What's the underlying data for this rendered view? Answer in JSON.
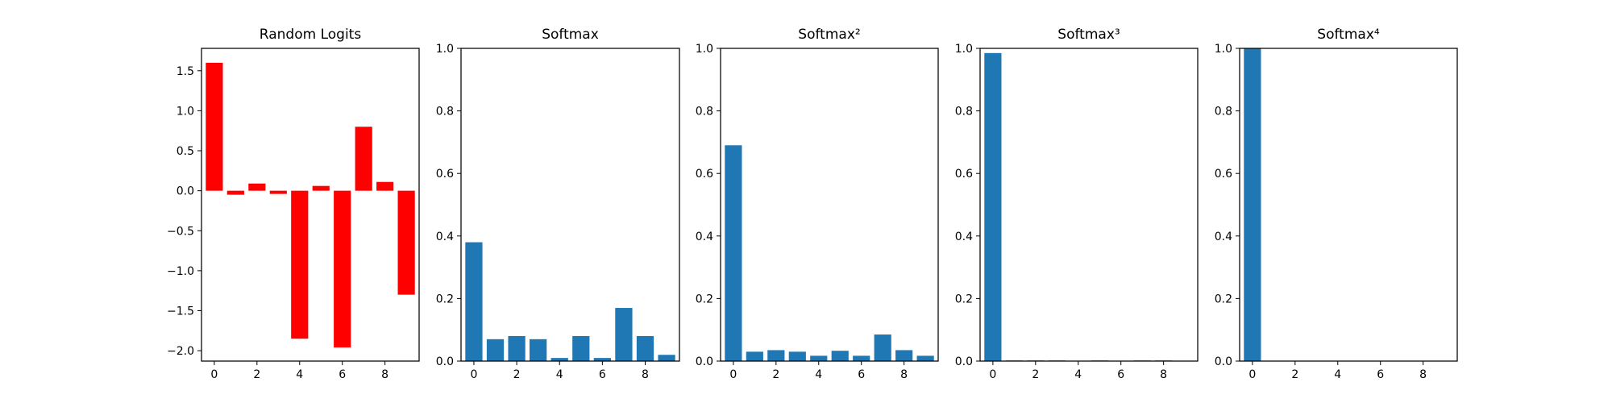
{
  "colors": {
    "logits": "#ff0000",
    "softmax": "#1f77b4"
  },
  "chart_data": [
    {
      "type": "bar",
      "title": "Random Logits",
      "color": "#ff0000",
      "x": [
        0,
        1,
        2,
        3,
        4,
        5,
        6,
        7,
        8,
        9
      ],
      "values": [
        1.6,
        -0.05,
        0.09,
        -0.04,
        -1.85,
        0.06,
        -1.96,
        0.8,
        0.11,
        -1.3
      ],
      "xlim": [
        -0.6,
        9.6
      ],
      "ylim": [
        -2.13,
        1.78
      ],
      "xticks": [
        0,
        2,
        4,
        6,
        8
      ],
      "xtick_labels": [
        "0",
        "2",
        "4",
        "6",
        "8"
      ],
      "yticks": [
        1.5,
        1.0,
        0.5,
        0.0,
        -0.5,
        -1.0,
        -1.5,
        -2.0
      ],
      "ytick_labels": [
        "1.5",
        "1.0",
        "0.5",
        "0.0",
        "−0.5",
        "−1.0",
        "−1.5",
        "−2.0"
      ],
      "grid": false
    },
    {
      "type": "bar",
      "title": "Softmax",
      "color": "#1f77b4",
      "x": [
        0,
        1,
        2,
        3,
        4,
        5,
        6,
        7,
        8,
        9
      ],
      "values": [
        0.38,
        0.07,
        0.08,
        0.07,
        0.01,
        0.08,
        0.01,
        0.17,
        0.08,
        0.02
      ],
      "xlim": [
        -0.6,
        9.6
      ],
      "ylim": [
        0,
        1
      ],
      "xticks": [
        0,
        2,
        4,
        6,
        8
      ],
      "xtick_labels": [
        "0",
        "2",
        "4",
        "6",
        "8"
      ],
      "yticks": [
        0.0,
        0.2,
        0.4,
        0.6,
        0.8,
        1.0
      ],
      "ytick_labels": [
        "0.0",
        "0.2",
        "0.4",
        "0.6",
        "0.8",
        "1.0"
      ],
      "grid": false
    },
    {
      "type": "bar",
      "title": "Softmax²",
      "color": "#1f77b4",
      "x": [
        0,
        1,
        2,
        3,
        4,
        5,
        6,
        7,
        8,
        9
      ],
      "values": [
        0.69,
        0.03,
        0.035,
        0.03,
        0.017,
        0.033,
        0.017,
        0.085,
        0.035,
        0.017
      ],
      "xlim": [
        -0.6,
        9.6
      ],
      "ylim": [
        0,
        1
      ],
      "xticks": [
        0,
        2,
        4,
        6,
        8
      ],
      "xtick_labels": [
        "0",
        "2",
        "4",
        "6",
        "8"
      ],
      "yticks": [
        0.0,
        0.2,
        0.4,
        0.6,
        0.8,
        1.0
      ],
      "ytick_labels": [
        "0.0",
        "0.2",
        "0.4",
        "0.6",
        "0.8",
        "1.0"
      ],
      "grid": false
    },
    {
      "type": "bar",
      "title": "Softmax³",
      "color": "#1f77b4",
      "x": [
        0,
        1,
        2,
        3,
        4,
        5,
        6,
        7,
        8,
        9
      ],
      "values": [
        0.985,
        0.002,
        0.002,
        0.002,
        0.001,
        0.002,
        0.001,
        0.002,
        0.002,
        0.001
      ],
      "xlim": [
        -0.6,
        9.6
      ],
      "ylim": [
        0,
        1
      ],
      "xticks": [
        0,
        2,
        4,
        6,
        8
      ],
      "xtick_labels": [
        "0",
        "2",
        "4",
        "6",
        "8"
      ],
      "yticks": [
        0.0,
        0.2,
        0.4,
        0.6,
        0.8,
        1.0
      ],
      "ytick_labels": [
        "0.0",
        "0.2",
        "0.4",
        "0.6",
        "0.8",
        "1.0"
      ],
      "grid": false
    },
    {
      "type": "bar",
      "title": "Softmax⁴",
      "color": "#1f77b4",
      "x": [
        0,
        1,
        2,
        3,
        4,
        5,
        6,
        7,
        8,
        9
      ],
      "values": [
        1.0,
        0,
        0,
        0,
        0,
        0,
        0,
        0,
        0,
        0
      ],
      "xlim": [
        -0.6,
        9.6
      ],
      "ylim": [
        0,
        1
      ],
      "xticks": [
        0,
        2,
        4,
        6,
        8
      ],
      "xtick_labels": [
        "0",
        "2",
        "4",
        "6",
        "8"
      ],
      "yticks": [
        0.0,
        0.2,
        0.4,
        0.6,
        0.8,
        1.0
      ],
      "ytick_labels": [
        "0.0",
        "0.2",
        "0.4",
        "0.6",
        "0.8",
        "1.0"
      ],
      "grid": false
    }
  ]
}
